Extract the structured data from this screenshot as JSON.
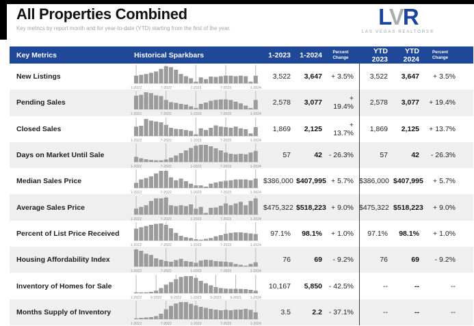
{
  "page": {
    "title": "All Properties Combined",
    "subtitle": "Key metrics by report month and for year-to-date (YTD) starting from the first of the year."
  },
  "logo": {
    "letter_l": "L",
    "letter_v": "V",
    "letter_r": "R",
    "name": "LAS VEGAS REALTORS®"
  },
  "colors": {
    "header_blue": "#1f4898",
    "logo_blue": "#1b429e",
    "bar_gray": "#9b9b9b",
    "row_alt_gray": "#efefef",
    "divider_dark": "#3f3f3f"
  },
  "table": {
    "headers": {
      "key_metrics": "Key Metrics",
      "sparkbars": "Historical Sparkbars",
      "month_prev": "1-2023",
      "month_curr": "1-2024",
      "pct_change": "Percent Change",
      "ytd_prev": "YTD 2023",
      "ytd_curr": "YTD 2024",
      "ytd_pct_change": "Percent Change"
    },
    "rows": [
      {
        "metric": "New Listings",
        "m2023": "3,522",
        "m2024": "3,647",
        "pct": "+ 3.5%",
        "ytd2023": "3,522",
        "ytd2024": "3,647",
        "ytd_pct": "+ 3.5%"
      },
      {
        "metric": "Pending Sales",
        "m2023": "2,578",
        "m2024": "3,077",
        "pct": "+ 19.4%",
        "ytd2023": "2,578",
        "ytd2024": "3,077",
        "ytd_pct": "+ 19.4%"
      },
      {
        "metric": "Closed Sales",
        "m2023": "1,869",
        "m2024": "2,125",
        "pct": "+ 13.7%",
        "ytd2023": "1,869",
        "ytd2024": "2,125",
        "ytd_pct": "+ 13.7%"
      },
      {
        "metric": "Days on Market Until Sale",
        "m2023": "57",
        "m2024": "42",
        "pct": "- 26.3%",
        "ytd2023": "57",
        "ytd2024": "42",
        "ytd_pct": "- 26.3%"
      },
      {
        "metric": "Median Sales Price",
        "m2023": "$386,000",
        "m2024": "$407,995",
        "pct": "+ 5.7%",
        "ytd2023": "$386,000",
        "ytd2024": "$407,995",
        "ytd_pct": "+ 5.7%"
      },
      {
        "metric": "Average Sales Price",
        "m2023": "$475,322",
        "m2024": "$518,223",
        "pct": "+ 9.0%",
        "ytd2023": "$475,322",
        "ytd2024": "$518,223",
        "ytd_pct": "+ 9.0%"
      },
      {
        "metric": "Percent of List Price Received",
        "m2023": "97.1%",
        "m2024": "98.1%",
        "pct": "+ 1.0%",
        "ytd2023": "97.1%",
        "ytd2024": "98.1%",
        "ytd_pct": "+ 1.0%"
      },
      {
        "metric": "Housing Affordability Index",
        "m2023": "76",
        "m2024": "69",
        "pct": "- 9.2%",
        "ytd2023": "76",
        "ytd2024": "69",
        "ytd_pct": "- 9.2%"
      },
      {
        "metric": "Inventory of Homes for Sale",
        "m2023": "10,167",
        "m2024": "5,850",
        "pct": "- 42.5%",
        "ytd2023": "--",
        "ytd2024": "--",
        "ytd_pct": "--"
      },
      {
        "metric": "Months Supply of Inventory",
        "m2023": "3.5",
        "m2024": "2.2",
        "pct": "- 37.1%",
        "ytd2023": "--",
        "ytd2024": "--",
        "ytd_pct": "--"
      }
    ]
  },
  "chart_data": [
    {
      "type": "bar",
      "title": "New Listings monthly sparkbar",
      "tick_labels": [
        "1-2022",
        "7-2022",
        "1-2023",
        "7-2023",
        "1-2024"
      ],
      "tick_index": [
        0,
        6,
        12,
        18,
        24
      ],
      "values": [
        45,
        50,
        55,
        62,
        70,
        85,
        100,
        95,
        80,
        55,
        42,
        30,
        10,
        35,
        25,
        40,
        38,
        42,
        45,
        45,
        42,
        45,
        42,
        10,
        45
      ],
      "ylim": [
        0,
        100
      ]
    },
    {
      "type": "bar",
      "title": "Pending Sales monthly sparkbar",
      "tick_labels": [
        "1-2022",
        "7-2022",
        "1-2023",
        "7-2023",
        "1-2024"
      ],
      "tick_index": [
        0,
        6,
        12,
        18,
        24
      ],
      "values": [
        80,
        85,
        100,
        95,
        82,
        78,
        55,
        42,
        38,
        32,
        28,
        18,
        8,
        32,
        40,
        50,
        55,
        58,
        58,
        55,
        45,
        35,
        22,
        8,
        55
      ],
      "ylim": [
        0,
        100
      ]
    },
    {
      "type": "bar",
      "title": "Closed Sales monthly sparkbar",
      "tick_labels": [
        "1-2022",
        "7-2022",
        "1-2023",
        "7-2023",
        "1-2024"
      ],
      "tick_index": [
        0,
        6,
        12,
        18,
        24
      ],
      "values": [
        55,
        60,
        100,
        90,
        85,
        80,
        65,
        48,
        42,
        40,
        35,
        30,
        10,
        45,
        35,
        48,
        62,
        55,
        52,
        48,
        55,
        45,
        40,
        15,
        52
      ],
      "ylim": [
        0,
        100
      ]
    },
    {
      "type": "bar",
      "title": "Days on Market Until Sale monthly sparkbar",
      "tick_labels": [
        "1-2022",
        "7-2022",
        "1-2023",
        "7-2023",
        "1-2024"
      ],
      "tick_index": [
        0,
        6,
        12,
        18,
        24
      ],
      "values": [
        30,
        22,
        16,
        12,
        10,
        10,
        15,
        25,
        38,
        52,
        68,
        82,
        95,
        100,
        100,
        92,
        80,
        68,
        55,
        48,
        45,
        48,
        45,
        55,
        65
      ],
      "ylim": [
        0,
        100
      ]
    },
    {
      "type": "bar",
      "title": "Median Sales Price monthly sparkbar",
      "tick_labels": [
        "1-2022",
        "7-2022",
        "1-2023",
        "7-2023",
        "1-2024"
      ],
      "tick_index": [
        0,
        6,
        12,
        18,
        24
      ],
      "values": [
        30,
        50,
        58,
        68,
        85,
        100,
        100,
        62,
        45,
        55,
        40,
        25,
        15,
        15,
        8,
        25,
        32,
        38,
        42,
        45,
        50,
        50,
        50,
        45,
        55
      ],
      "ylim": [
        0,
        100
      ]
    },
    {
      "type": "bar",
      "title": "Average Sales Price monthly sparkbar",
      "tick_labels": [
        "1-2022",
        "7-2022",
        "1-2023",
        "7-2023",
        "1-2024"
      ],
      "tick_index": [
        0,
        6,
        12,
        18,
        24
      ],
      "values": [
        35,
        45,
        55,
        80,
        95,
        95,
        100,
        55,
        50,
        55,
        50,
        60,
        35,
        45,
        10,
        40,
        42,
        52,
        65,
        55,
        65,
        75,
        55,
        80,
        95
      ],
      "ylim": [
        0,
        100
      ]
    },
    {
      "type": "bar",
      "title": "Percent of List Price Received monthly sparkbar",
      "tick_labels": [
        "1-2022",
        "7-2022",
        "1-2023",
        "7-2023",
        "1-2024"
      ],
      "tick_index": [
        0,
        6,
        12,
        18,
        24
      ],
      "values": [
        70,
        78,
        85,
        92,
        98,
        100,
        92,
        72,
        45,
        28,
        20,
        15,
        8,
        5,
        10,
        15,
        25,
        32,
        40,
        45,
        48,
        48,
        45,
        42,
        38
      ],
      "ylim": [
        0,
        100
      ]
    },
    {
      "type": "bar",
      "title": "Housing Affordability Index monthly sparkbar",
      "tick_labels": [
        "1-2022",
        "7-2022",
        "1-2023",
        "7-2023",
        "1-2024"
      ],
      "tick_index": [
        0,
        6,
        12,
        18,
        24
      ],
      "values": [
        100,
        92,
        75,
        68,
        48,
        40,
        32,
        28,
        38,
        45,
        32,
        28,
        22,
        35,
        40,
        38,
        32,
        30,
        28,
        25,
        15,
        10,
        5,
        15,
        25
      ],
      "ylim": [
        0,
        100
      ]
    },
    {
      "type": "bar",
      "title": "Inventory of Homes for Sale monthly sparkbar",
      "tick_labels": [
        "1-2022",
        "5-2022",
        "9-2022",
        "1-2023",
        "5-2023",
        "9-2023",
        "1-2024"
      ],
      "tick_index": [
        0,
        4,
        8,
        12,
        16,
        20,
        24
      ],
      "values": [
        3,
        3,
        4,
        8,
        15,
        30,
        50,
        65,
        82,
        95,
        100,
        100,
        90,
        72,
        58,
        46,
        36,
        30,
        27,
        26,
        26,
        25,
        24,
        20,
        15
      ],
      "ylim": [
        0,
        100
      ]
    },
    {
      "type": "bar",
      "title": "Months Supply of Inventory monthly sparkbar",
      "tick_labels": [
        "1-2022",
        "7-2022",
        "1-2023",
        "7-2023",
        "1-2024"
      ],
      "tick_index": [
        0,
        6,
        12,
        18,
        24
      ],
      "values": [
        5,
        8,
        10,
        12,
        18,
        32,
        58,
        78,
        92,
        100,
        100,
        90,
        80,
        72,
        66,
        60,
        56,
        52,
        55,
        52,
        56,
        56,
        60,
        55,
        40
      ],
      "ylim": [
        0,
        100
      ]
    }
  ]
}
